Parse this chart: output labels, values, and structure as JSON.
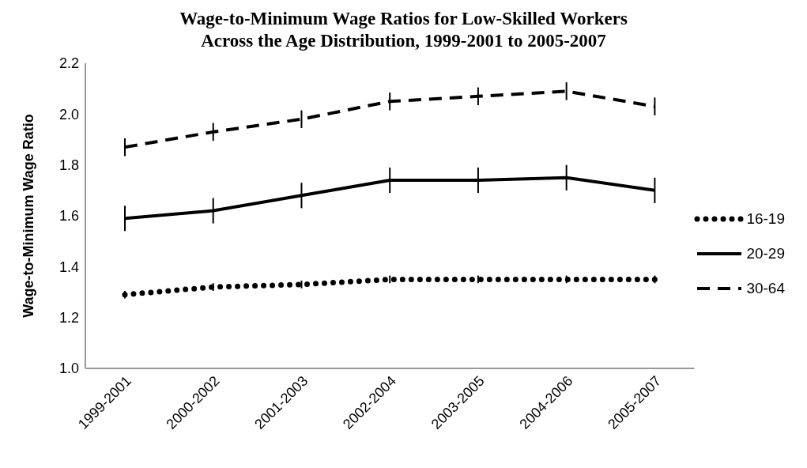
{
  "chart_data": {
    "type": "line",
    "title": "Wage-to-Minimum Wage Ratios for Low-Skilled Workers Across the Age Distribution, 1999-2001 to 2005-2007",
    "ylabel": "Wage-to-Minimum Wage Ratio",
    "categories": [
      "1999-2001",
      "2000-2002",
      "2001-2003",
      "2002-2004",
      "2003-2005",
      "2004-2006",
      "2005-2007"
    ],
    "series": [
      {
        "name": "16-19",
        "color": "#000000",
        "line_style": "dotted",
        "values": [
          1.29,
          1.32,
          1.33,
          1.35,
          1.35,
          1.35,
          1.35
        ],
        "errors": [
          0.015,
          0.015,
          0.015,
          0.015,
          0.015,
          0.015,
          0.015
        ]
      },
      {
        "name": "20-29",
        "color": "#000000",
        "line_style": "solid",
        "values": [
          1.59,
          1.62,
          1.68,
          1.74,
          1.74,
          1.75,
          1.7
        ],
        "errors": [
          0.05,
          0.05,
          0.05,
          0.05,
          0.05,
          0.05,
          0.05
        ]
      },
      {
        "name": "30-64",
        "color": "#000000",
        "line_style": "dashed",
        "values": [
          1.87,
          1.93,
          1.98,
          2.05,
          2.07,
          2.09,
          2.03
        ],
        "errors": [
          0.035,
          0.035,
          0.035,
          0.035,
          0.035,
          0.035,
          0.035
        ]
      }
    ],
    "ylim": [
      1.0,
      2.2
    ],
    "yticks": [
      {
        "value": 1,
        "label": "1.0"
      },
      1.2,
      1.4,
      1.6,
      1.8,
      {
        "value": 2,
        "label": "2.0"
      },
      2.2
    ],
    "grid": false,
    "legend": "right",
    "marker": "none"
  }
}
